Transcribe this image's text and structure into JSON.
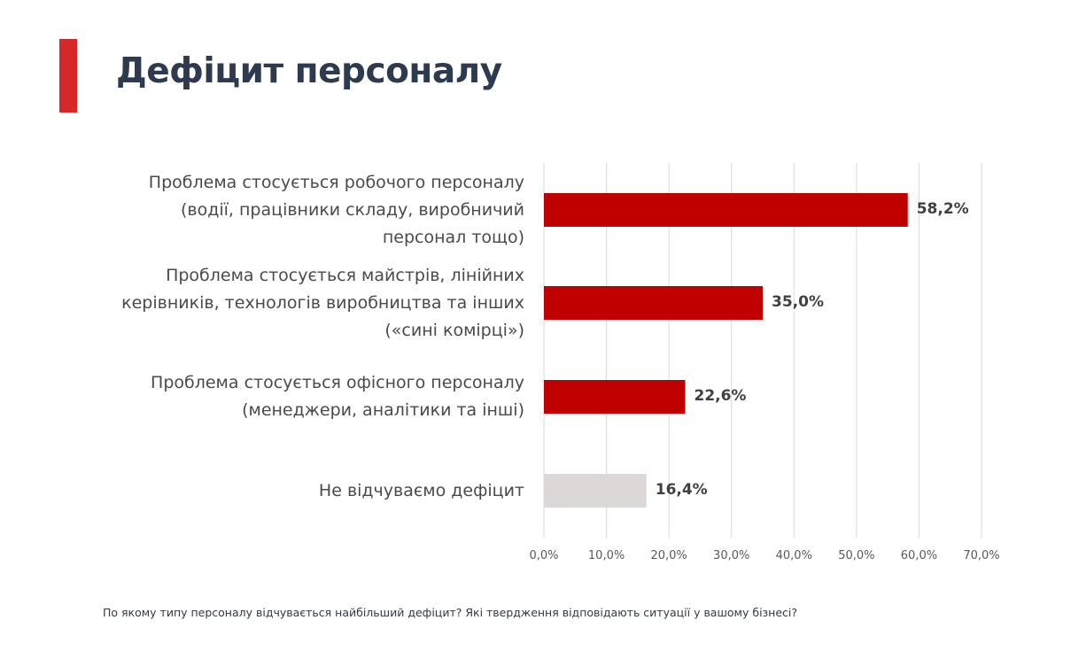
{
  "title": "Дефіцит персоналу",
  "footnote": "По якому типу персоналу відчувається найбільший дефіцит? Які твердження відповідають ситуації у вашому бізнесі?",
  "colors": {
    "accent": "#d62828",
    "bar_primary": "#c00000",
    "bar_secondary": "#dcd8d8",
    "gridline": "#d9d9d9",
    "title": "#2e3a4e"
  },
  "chart_data": {
    "type": "bar",
    "orientation": "horizontal",
    "categories": [
      "Проблема стосується робочого персоналу (водії, працівники складу, виробничий персонал тощо)",
      "Проблема стосується майстрів, лінійних керівників, технологів виробництва та інших («сині комірці»)",
      "Проблема стосується офісного персоналу (менеджери, аналітики та інші)",
      "Не відчуваємо дефіцит"
    ],
    "category_lines": [
      [
        "Проблема стосується робочого персоналу",
        "(водії, працівники складу, виробничий",
        "персонал тощо)"
      ],
      [
        "Проблема стосується майстрів, лінійних",
        "керівників, технологів виробництва та інших",
        "(«сині комірці»)"
      ],
      [
        "Проблема стосується офісного персоналу",
        "(менеджери, аналітики та інші)"
      ],
      [
        "Не відчуваємо дефіцит"
      ]
    ],
    "values": [
      58.2,
      35.0,
      22.6,
      16.4
    ],
    "value_labels": [
      "58,2%",
      "35,0%",
      "22,6%",
      "16,4%"
    ],
    "bar_color_roles": [
      "primary",
      "primary",
      "primary",
      "secondary"
    ],
    "xlim": [
      0,
      70
    ],
    "ticks": [
      0,
      10,
      20,
      30,
      40,
      50,
      60,
      70
    ],
    "tick_labels": [
      "0,0%",
      "10,0%",
      "20,0%",
      "30,0%",
      "40,0%",
      "50,0%",
      "60,0%",
      "70,0%"
    ],
    "grid": true,
    "legend": "none",
    "xlabel": "",
    "ylabel": ""
  }
}
